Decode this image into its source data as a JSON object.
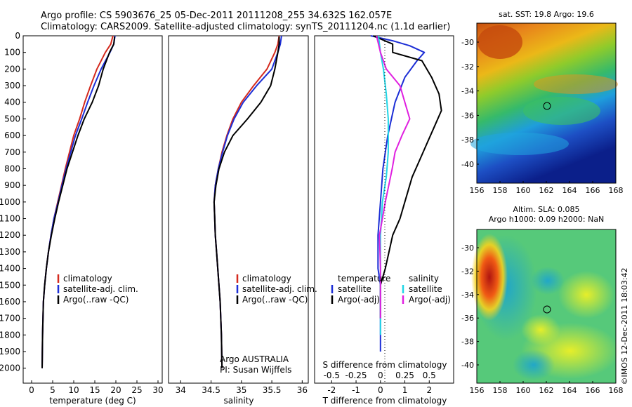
{
  "header": {
    "line1": "Argo profile: CS 5903676_25 05-Dec-2011 20111208_255 34.632S 162.057E",
    "line2": "Climatology: CARS2009. Satellite-adjusted climatology: synTS_20111204.nc (1.1d earlier)"
  },
  "colors": {
    "climatology": "#d42a1e",
    "satellite": "#1c2ed6",
    "argo": "#000000",
    "sat_salinity": "#21d6e6",
    "argo_salinity": "#e020e0"
  },
  "chart_data": [
    {
      "type": "line",
      "xlabel": "temperature (deg C)",
      "ylabel": "",
      "xlim": [
        -2,
        31
      ],
      "ylim": [
        2090,
        0
      ],
      "invert_y": true,
      "xticks": [
        0,
        5,
        10,
        15,
        20,
        25,
        30
      ],
      "yticks": [
        0,
        100,
        200,
        300,
        400,
        500,
        600,
        700,
        800,
        900,
        1000,
        1100,
        1200,
        1300,
        1400,
        1500,
        1600,
        1700,
        1800,
        1900,
        2000
      ],
      "legend": [
        "climatology",
        "satellite-adj. clim.",
        "Argo(..raw -QC)"
      ],
      "series": [
        {
          "name": "climatology",
          "color_key": "climatology",
          "x": [
            19.3,
            18.8,
            17.5,
            15.5,
            14.0,
            12.6,
            11.4,
            10.0,
            9.0,
            8.0,
            7.1,
            6.2,
            5.3,
            4.6,
            4.0,
            3.5,
            3.1,
            2.8,
            2.6,
            2.5
          ],
          "y": [
            0,
            50,
            100,
            200,
            300,
            400,
            500,
            600,
            700,
            800,
            900,
            1000,
            1100,
            1200,
            1300,
            1400,
            1500,
            1600,
            1800,
            2000
          ]
        },
        {
          "name": "satellite-adj. clim.",
          "color_key": "satellite",
          "x": [
            19.8,
            19.5,
            18.6,
            16.5,
            14.8,
            13.3,
            11.9,
            10.4,
            9.3,
            8.2,
            7.2,
            6.3,
            5.3,
            4.6,
            4.0,
            3.5,
            3.1,
            2.8,
            2.6,
            2.5
          ],
          "y": [
            0,
            50,
            100,
            200,
            300,
            400,
            500,
            600,
            700,
            800,
            900,
            1000,
            1100,
            1200,
            1300,
            1400,
            1500,
            1600,
            1800,
            2000
          ]
        },
        {
          "name": "Argo(..raw -QC)",
          "color_key": "argo",
          "x": [
            19.7,
            19.5,
            18.5,
            17.0,
            15.9,
            14.4,
            12.5,
            11.0,
            9.7,
            8.4,
            7.4,
            6.4,
            5.5,
            4.7,
            4.0,
            3.5,
            3.1,
            2.8,
            2.6,
            2.5
          ],
          "y": [
            5,
            50,
            100,
            200,
            300,
            400,
            500,
            600,
            700,
            800,
            900,
            1000,
            1100,
            1200,
            1300,
            1400,
            1500,
            1600,
            1800,
            2000
          ]
        }
      ]
    },
    {
      "type": "line",
      "xlabel": "salinity",
      "xlim": [
        33.8,
        36.1
      ],
      "ylim": [
        2090,
        0
      ],
      "invert_y": true,
      "xticks": [
        34,
        34.5,
        35,
        35.5,
        36
      ],
      "legend": [
        "climatology",
        "satellite-adj. clim.",
        "Argo(..raw -QC)"
      ],
      "annotations": [
        "Argo AUSTRALIA",
        "PI: Susan Wijffels"
      ],
      "series": [
        {
          "name": "climatology",
          "color_key": "climatology",
          "x": [
            35.62,
            35.6,
            35.55,
            35.42,
            35.2,
            35.0,
            34.86,
            34.76,
            34.68,
            34.62,
            34.57,
            34.55,
            34.56,
            34.57,
            34.59,
            34.61,
            34.63,
            34.65,
            34.67,
            34.68
          ],
          "y": [
            0,
            50,
            100,
            200,
            300,
            400,
            500,
            600,
            700,
            800,
            900,
            1000,
            1100,
            1200,
            1300,
            1400,
            1500,
            1600,
            1800,
            2000
          ]
        },
        {
          "name": "satellite-adj. clim.",
          "color_key": "satellite",
          "x": [
            35.66,
            35.64,
            35.6,
            35.5,
            35.25,
            35.03,
            34.88,
            34.77,
            34.69,
            34.62,
            34.57,
            34.55,
            34.56,
            34.57,
            34.59,
            34.61,
            34.63,
            34.65,
            34.67,
            34.68
          ],
          "y": [
            0,
            50,
            100,
            200,
            300,
            400,
            500,
            600,
            700,
            800,
            900,
            1000,
            1100,
            1200,
            1300,
            1400,
            1500,
            1600,
            1800,
            2000
          ]
        },
        {
          "name": "Argo(..raw -QC)",
          "color_key": "argo",
          "x": [
            35.62,
            35.62,
            35.6,
            35.55,
            35.48,
            35.32,
            35.1,
            34.86,
            34.72,
            34.63,
            34.58,
            34.55,
            34.56,
            34.57,
            34.59,
            34.61,
            34.63,
            34.65,
            34.67,
            34.68
          ],
          "y": [
            5,
            50,
            100,
            200,
            300,
            400,
            500,
            600,
            700,
            800,
            900,
            1000,
            1100,
            1200,
            1300,
            1400,
            1500,
            1600,
            1800,
            2000
          ]
        }
      ]
    },
    {
      "type": "line",
      "xlabel": "T difference from climatology",
      "xlabel_top": "S difference from climatology",
      "xlim": [
        -2.7,
        3.0
      ],
      "ylim": [
        2090,
        0
      ],
      "invert_y": true,
      "xticks": [
        -2,
        -1,
        0,
        1,
        2
      ],
      "xticks_S_values": [
        -0.5,
        -0.25,
        0,
        0.25,
        0.5
      ],
      "xticks_S": [
        "-0.5",
        "-0.25",
        "0",
        "0.25",
        "0.5"
      ],
      "legend": [
        "temperature",
        "satellite",
        "Argo(-adj)",
        "salinity",
        "satellite",
        "Argo(-adj)"
      ],
      "series": [
        {
          "name": "temperature satellite",
          "color_key": "satellite",
          "x": [
            -0.4,
            0.5,
            1.2,
            1.8,
            1.5,
            1.0,
            0.6,
            0.3,
            0.1,
            0.0,
            -0.1,
            -0.1,
            0.0,
            0.0,
            0.0,
            0.0,
            0.0
          ],
          "y": [
            0,
            30,
            60,
            100,
            150,
            250,
            400,
            600,
            800,
            1000,
            1200,
            1400,
            1500,
            1600,
            1700,
            1800,
            1900
          ]
        },
        {
          "name": "temperature Argo(-adj)",
          "color_key": "argo",
          "x": [
            -0.3,
            0.5,
            0.5,
            1.7,
            2.1,
            2.4,
            2.5,
            2.2,
            1.9,
            1.6,
            1.3,
            1.0,
            0.8,
            0.5,
            0.2,
            0.0,
            0.0,
            0.0
          ],
          "y": [
            0,
            50,
            100,
            150,
            250,
            350,
            450,
            550,
            650,
            750,
            850,
            1000,
            1100,
            1200,
            1400,
            1500,
            1600,
            1700
          ]
        },
        {
          "name": "salinity satellite",
          "color_key": "sat_salinity",
          "x": [
            -0.02,
            0.0,
            0.03,
            0.06,
            0.08,
            0.08,
            0.06,
            0.02,
            0.0,
            0.0,
            0.0,
            0.0,
            0.0,
            0.0
          ],
          "y": [
            0,
            100,
            200,
            350,
            500,
            700,
            850,
            1000,
            1200,
            1400,
            1500,
            1600,
            1700,
            1800
          ]
        },
        {
          "name": "salinity Argo(-adj)",
          "color_key": "argo_salinity",
          "x": [
            -0.04,
            0.0,
            0.06,
            0.2,
            0.25,
            0.3,
            0.22,
            0.15,
            0.12,
            0.05,
            -0.01,
            0.0,
            0.0,
            0.0,
            0.0
          ],
          "y": [
            0,
            100,
            200,
            300,
            400,
            500,
            600,
            700,
            800,
            1000,
            1200,
            1400,
            1500,
            1600,
            1700
          ]
        }
      ]
    }
  ],
  "maps": {
    "sst": {
      "title": "sat. SST: 19.8  Argo: 19.6",
      "xticks": [
        "156",
        "158",
        "160",
        "162",
        "164",
        "166",
        "168"
      ],
      "yticks": [
        "-30",
        "-32",
        "-34",
        "-36",
        "-38",
        "-40"
      ]
    },
    "sla": {
      "title1": "Altim. SLA: 0.085",
      "title2": "Argo h1000: 0.09  h2000: NaN",
      "xticks": [
        "156",
        "158",
        "160",
        "162",
        "164",
        "166",
        "168"
      ],
      "yticks": [
        "-30",
        "-32",
        "-34",
        "-36",
        "-38",
        "-40"
      ]
    }
  },
  "depth_ticks": [
    "0",
    "100",
    "200",
    "300",
    "400",
    "500",
    "600",
    "700",
    "800",
    "900",
    "1000",
    "1100",
    "1200",
    "1300",
    "1400",
    "1500",
    "1600",
    "1700",
    "1800",
    "1900",
    "2000"
  ],
  "credit": "©IMOS 12-Dec-2011 18:03:42"
}
